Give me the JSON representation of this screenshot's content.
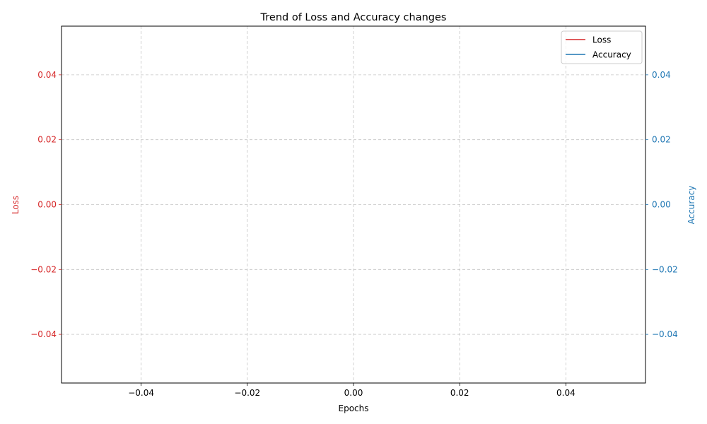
{
  "chart_data": {
    "type": "line",
    "title": "Trend of Loss and Accuracy changes",
    "xlabel": "Epochs",
    "ylabel_left": "Loss",
    "ylabel_right": "Accuracy",
    "xlim": [
      -0.055,
      0.055
    ],
    "ylim_left": [
      -0.055,
      0.055
    ],
    "ylim_right": [
      -0.055,
      0.055
    ],
    "x_ticks": [
      -0.04,
      -0.02,
      0.0,
      0.02,
      0.04
    ],
    "x_tick_labels": [
      "−0.04",
      "−0.02",
      "0.00",
      "0.02",
      "0.04"
    ],
    "y_left_ticks": [
      -0.04,
      -0.02,
      0.0,
      0.02,
      0.04
    ],
    "y_left_tick_labels": [
      "−0.04",
      "−0.02",
      "0.00",
      "0.02",
      "0.04"
    ],
    "y_right_ticks": [
      -0.04,
      -0.02,
      0.0,
      0.02,
      0.04
    ],
    "y_right_tick_labels": [
      "−0.04",
      "−0.02",
      "0.00",
      "0.02",
      "0.04"
    ],
    "grid": true,
    "legend_position": "top-right",
    "series": [
      {
        "name": "Loss",
        "axis": "left",
        "color": "#d62728",
        "x": [],
        "y": []
      },
      {
        "name": "Accuracy",
        "axis": "right",
        "color": "#1f77b4",
        "x": [],
        "y": []
      }
    ],
    "colors": {
      "loss": "#d62728",
      "accuracy": "#1f77b4",
      "grid": "#b0b0b0",
      "axis": "#000000"
    }
  }
}
